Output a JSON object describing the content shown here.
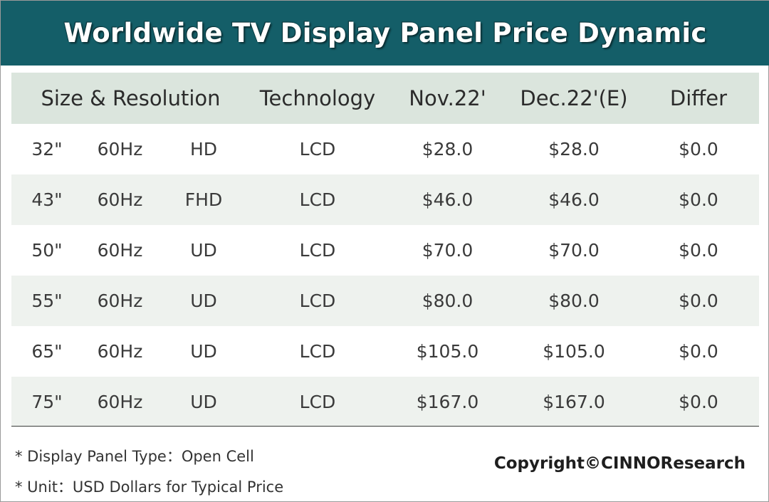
{
  "title": "Worldwide TV Display Panel Price Dynamic",
  "chart_data": {
    "type": "table",
    "title": "Worldwide TV Display Panel Price Dynamic",
    "columns": [
      "Size & Resolution",
      "Technology",
      "Nov.22'",
      "Dec.22'(E)",
      "Differ"
    ],
    "rows": [
      {
        "size": "32\"",
        "hz": "60Hz",
        "res": "HD",
        "tech": "LCD",
        "nov": "$28.0",
        "dec": "$28.0",
        "diff": "$0.0"
      },
      {
        "size": "43\"",
        "hz": "60Hz",
        "res": "FHD",
        "tech": "LCD",
        "nov": "$46.0",
        "dec": "$46.0",
        "diff": "$0.0"
      },
      {
        "size": "50\"",
        "hz": "60Hz",
        "res": "UD",
        "tech": "LCD",
        "nov": "$70.0",
        "dec": "$70.0",
        "diff": "$0.0"
      },
      {
        "size": "55\"",
        "hz": "60Hz",
        "res": "UD",
        "tech": "LCD",
        "nov": "$80.0",
        "dec": "$80.0",
        "diff": "$0.0"
      },
      {
        "size": "65\"",
        "hz": "60Hz",
        "res": "UD",
        "tech": "LCD",
        "nov": "$105.0",
        "dec": "$105.0",
        "diff": "$0.0"
      },
      {
        "size": "75\"",
        "hz": "60Hz",
        "res": "UD",
        "tech": "LCD",
        "nov": "$167.0",
        "dec": "$167.0",
        "diff": "$0.0"
      }
    ]
  },
  "notes": {
    "panel_type": "* Display Panel Type：Open Cell",
    "unit": "* Unit：USD Dollars for Typical Price"
  },
  "copyright": "Copyright©CINNOResearch",
  "colors": {
    "title_bar": "#145e68",
    "header_row": "#dbe5dd",
    "shaded_row": "#eef2ee"
  }
}
